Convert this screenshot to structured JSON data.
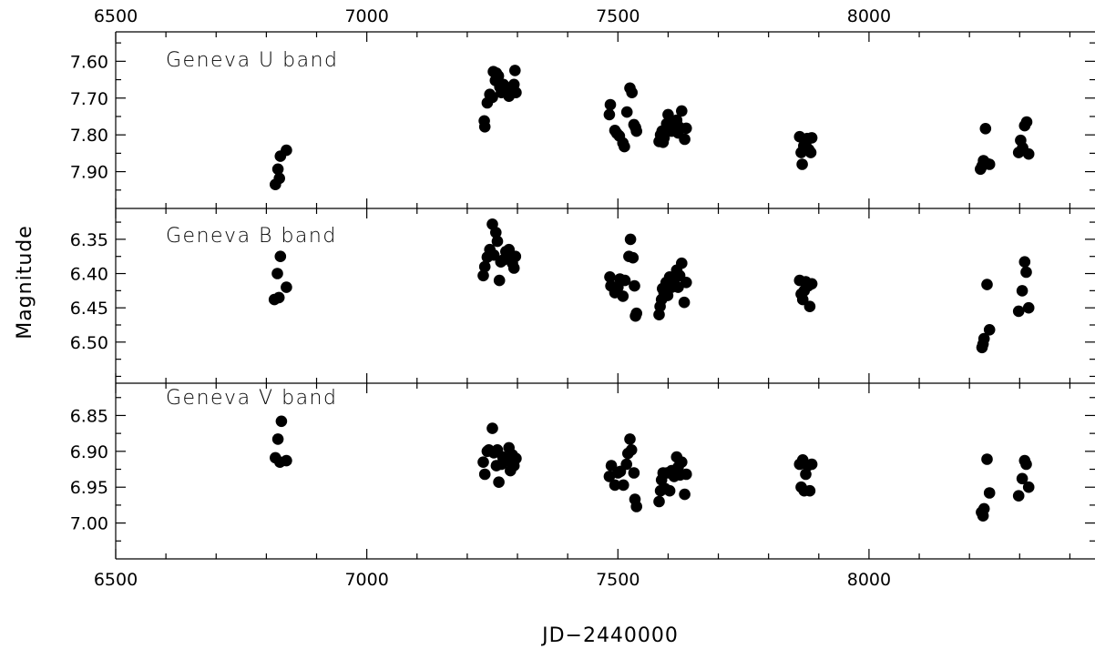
{
  "chart_data": {
    "type": "scatter",
    "xlabel": "JD−2440000",
    "ylabel": "Magnitude",
    "xlim": [
      6500,
      8450
    ],
    "xticks": [
      6500,
      7000,
      7500,
      8000
    ],
    "xtick_labels": [
      "6500",
      "7000",
      "7500",
      "8000"
    ],
    "panels": [
      {
        "label": "Geneva U band",
        "ylim": [
          7.52,
          8.0
        ],
        "y_inverted": true,
        "yticks": [
          7.6,
          7.7,
          7.8,
          7.9
        ],
        "ytick_labels": [
          "7.60",
          "7.70",
          "7.80",
          "7.90"
        ],
        "points": [
          [
            6818,
            7.935
          ],
          [
            6823,
            7.893
          ],
          [
            6826,
            7.918
          ],
          [
            6828,
            7.858
          ],
          [
            6840,
            7.842
          ],
          [
            7234,
            7.762
          ],
          [
            7235,
            7.778
          ],
          [
            7240,
            7.713
          ],
          [
            7245,
            7.69
          ],
          [
            7250,
            7.698
          ],
          [
            7252,
            7.628
          ],
          [
            7256,
            7.652
          ],
          [
            7258,
            7.632
          ],
          [
            7262,
            7.64
          ],
          [
            7265,
            7.67
          ],
          [
            7268,
            7.685
          ],
          [
            7272,
            7.663
          ],
          [
            7276,
            7.68
          ],
          [
            7283,
            7.695
          ],
          [
            7288,
            7.675
          ],
          [
            7293,
            7.663
          ],
          [
            7295,
            7.625
          ],
          [
            7297,
            7.685
          ],
          [
            7483,
            7.745
          ],
          [
            7485,
            7.718
          ],
          [
            7494,
            7.788
          ],
          [
            7498,
            7.796
          ],
          [
            7503,
            7.803
          ],
          [
            7510,
            7.822
          ],
          [
            7513,
            7.832
          ],
          [
            7518,
            7.738
          ],
          [
            7524,
            7.673
          ],
          [
            7528,
            7.685
          ],
          [
            7532,
            7.772
          ],
          [
            7535,
            7.78
          ],
          [
            7537,
            7.79
          ],
          [
            7582,
            7.818
          ],
          [
            7585,
            7.8
          ],
          [
            7588,
            7.79
          ],
          [
            7590,
            7.82
          ],
          [
            7592,
            7.808
          ],
          [
            7595,
            7.785
          ],
          [
            7597,
            7.77
          ],
          [
            7600,
            7.745
          ],
          [
            7603,
            7.76
          ],
          [
            7607,
            7.79
          ],
          [
            7612,
            7.778
          ],
          [
            7617,
            7.76
          ],
          [
            7620,
            7.795
          ],
          [
            7623,
            7.78
          ],
          [
            7627,
            7.735
          ],
          [
            7633,
            7.812
          ],
          [
            7636,
            7.782
          ],
          [
            7862,
            7.805
          ],
          [
            7865,
            7.848
          ],
          [
            7867,
            7.88
          ],
          [
            7870,
            7.83
          ],
          [
            7874,
            7.822
          ],
          [
            7877,
            7.81
          ],
          [
            7880,
            7.84
          ],
          [
            7884,
            7.848
          ],
          [
            7886,
            7.808
          ],
          [
            8222,
            7.893
          ],
          [
            8225,
            7.885
          ],
          [
            8228,
            7.87
          ],
          [
            8232,
            7.783
          ],
          [
            8235,
            7.878
          ],
          [
            8240,
            7.88
          ],
          [
            8298,
            7.848
          ],
          [
            8302,
            7.815
          ],
          [
            8306,
            7.835
          ],
          [
            8310,
            7.775
          ],
          [
            8314,
            7.765
          ],
          [
            8318,
            7.852
          ]
        ]
      },
      {
        "label": "Geneva B band",
        "ylim": [
          6.305,
          6.56
        ],
        "y_inverted": true,
        "yticks": [
          6.35,
          6.4,
          6.45,
          6.5
        ],
        "ytick_labels": [
          "6.35",
          "6.40",
          "6.45",
          "6.50"
        ],
        "points": [
          [
            6816,
            6.438
          ],
          [
            6822,
            6.4
          ],
          [
            6825,
            6.435
          ],
          [
            6828,
            6.375
          ],
          [
            6840,
            6.42
          ],
          [
            7232,
            6.403
          ],
          [
            7235,
            6.39
          ],
          [
            7240,
            6.376
          ],
          [
            7245,
            6.365
          ],
          [
            7250,
            6.328
          ],
          [
            7253,
            6.373
          ],
          [
            7257,
            6.34
          ],
          [
            7260,
            6.353
          ],
          [
            7264,
            6.41
          ],
          [
            7267,
            6.383
          ],
          [
            7272,
            6.38
          ],
          [
            7277,
            6.368
          ],
          [
            7283,
            6.365
          ],
          [
            7286,
            6.38
          ],
          [
            7290,
            6.385
          ],
          [
            7293,
            6.392
          ],
          [
            7296,
            6.375
          ],
          [
            7484,
            6.405
          ],
          [
            7486,
            6.418
          ],
          [
            7494,
            6.428
          ],
          [
            7500,
            6.42
          ],
          [
            7504,
            6.408
          ],
          [
            7510,
            6.433
          ],
          [
            7514,
            6.41
          ],
          [
            7522,
            6.375
          ],
          [
            7525,
            6.35
          ],
          [
            7530,
            6.377
          ],
          [
            7533,
            6.418
          ],
          [
            7535,
            6.462
          ],
          [
            7537,
            6.458
          ],
          [
            7582,
            6.46
          ],
          [
            7584,
            6.448
          ],
          [
            7587,
            6.438
          ],
          [
            7589,
            6.422
          ],
          [
            7592,
            6.428
          ],
          [
            7596,
            6.413
          ],
          [
            7599,
            6.432
          ],
          [
            7603,
            6.405
          ],
          [
            7607,
            6.42
          ],
          [
            7612,
            6.41
          ],
          [
            7617,
            6.395
          ],
          [
            7620,
            6.42
          ],
          [
            7623,
            6.403
          ],
          [
            7627,
            6.385
          ],
          [
            7632,
            6.442
          ],
          [
            7636,
            6.413
          ],
          [
            7862,
            6.41
          ],
          [
            7865,
            6.43
          ],
          [
            7868,
            6.438
          ],
          [
            7871,
            6.425
          ],
          [
            7874,
            6.412
          ],
          [
            7879,
            6.418
          ],
          [
            7882,
            6.448
          ],
          [
            7886,
            6.415
          ],
          [
            8225,
            6.508
          ],
          [
            8227,
            6.503
          ],
          [
            8229,
            6.495
          ],
          [
            8235,
            6.416
          ],
          [
            8240,
            6.482
          ],
          [
            8298,
            6.455
          ],
          [
            8305,
            6.425
          ],
          [
            8310,
            6.383
          ],
          [
            8313,
            6.398
          ],
          [
            8318,
            6.45
          ]
        ]
      },
      {
        "label": "Geneva V band",
        "ylim": [
          6.805,
          7.05
        ],
        "y_inverted": true,
        "yticks": [
          6.85,
          6.9,
          6.95,
          7.0
        ],
        "ytick_labels": [
          "6.85",
          "6.90",
          "6.95",
          "7.00"
        ],
        "points": [
          [
            6818,
            6.909
          ],
          [
            6823,
            6.883
          ],
          [
            6827,
            6.915
          ],
          [
            6830,
            6.858
          ],
          [
            6840,
            6.913
          ],
          [
            7232,
            6.915
          ],
          [
            7235,
            6.932
          ],
          [
            7240,
            6.9
          ],
          [
            7243,
            6.898
          ],
          [
            7250,
            6.868
          ],
          [
            7253,
            6.902
          ],
          [
            7258,
            6.92
          ],
          [
            7260,
            6.898
          ],
          [
            7263,
            6.943
          ],
          [
            7268,
            6.918
          ],
          [
            7271,
            6.908
          ],
          [
            7277,
            6.913
          ],
          [
            7283,
            6.895
          ],
          [
            7286,
            6.927
          ],
          [
            7290,
            6.905
          ],
          [
            7293,
            6.92
          ],
          [
            7297,
            6.91
          ],
          [
            7483,
            6.935
          ],
          [
            7487,
            6.92
          ],
          [
            7494,
            6.947
          ],
          [
            7500,
            6.93
          ],
          [
            7505,
            6.928
          ],
          [
            7511,
            6.947
          ],
          [
            7517,
            6.918
          ],
          [
            7520,
            6.903
          ],
          [
            7524,
            6.883
          ],
          [
            7527,
            6.898
          ],
          [
            7532,
            6.93
          ],
          [
            7534,
            6.967
          ],
          [
            7537,
            6.977
          ],
          [
            7582,
            6.97
          ],
          [
            7585,
            6.955
          ],
          [
            7587,
            6.94
          ],
          [
            7590,
            6.93
          ],
          [
            7594,
            6.952
          ],
          [
            7598,
            6.93
          ],
          [
            7603,
            6.955
          ],
          [
            7607,
            6.927
          ],
          [
            7612,
            6.935
          ],
          [
            7617,
            6.908
          ],
          [
            7620,
            6.922
          ],
          [
            7624,
            6.933
          ],
          [
            7627,
            6.915
          ],
          [
            7633,
            6.96
          ],
          [
            7636,
            6.932
          ],
          [
            7862,
            6.918
          ],
          [
            7865,
            6.95
          ],
          [
            7868,
            6.912
          ],
          [
            7871,
            6.955
          ],
          [
            7874,
            6.932
          ],
          [
            7878,
            6.92
          ],
          [
            7882,
            6.955
          ],
          [
            7886,
            6.918
          ],
          [
            8224,
            6.985
          ],
          [
            8227,
            6.99
          ],
          [
            8229,
            6.98
          ],
          [
            8235,
            6.911
          ],
          [
            8240,
            6.958
          ],
          [
            8298,
            6.962
          ],
          [
            8305,
            6.938
          ],
          [
            8310,
            6.913
          ],
          [
            8313,
            6.918
          ],
          [
            8318,
            6.95
          ]
        ]
      }
    ]
  }
}
